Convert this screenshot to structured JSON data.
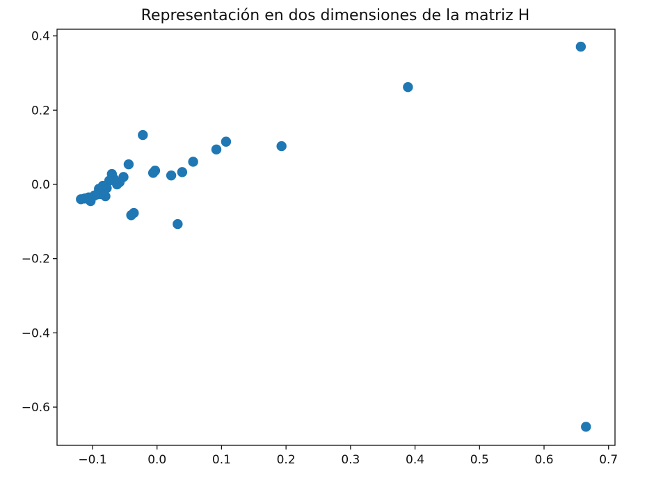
{
  "chart_data": {
    "type": "scatter",
    "title": "Representación en dos dimensiones de la matriz H",
    "xlabel": "",
    "ylabel": "",
    "xlim": [
      -0.155,
      0.71
    ],
    "ylim": [
      -0.703,
      0.418
    ],
    "grid": false,
    "marker_color": "#1f77b4",
    "x_ticks": [
      -0.1,
      0.0,
      0.1,
      0.2,
      0.3,
      0.4,
      0.5,
      0.6,
      0.7
    ],
    "x_tick_labels": [
      "−0.1",
      "0.0",
      "0.1",
      "0.2",
      "0.3",
      "0.4",
      "0.5",
      "0.6",
      "0.7"
    ],
    "y_ticks": [
      -0.6,
      -0.4,
      -0.2,
      0.0,
      0.2,
      0.4
    ],
    "y_tick_labels": [
      "−0.6",
      "−0.4",
      "−0.2",
      "0.0",
      "0.2",
      "0.4"
    ],
    "points": [
      {
        "x": 0.657,
        "y": 0.371
      },
      {
        "x": 0.665,
        "y": -0.653
      },
      {
        "x": 0.389,
        "y": 0.262
      },
      {
        "x": 0.193,
        "y": 0.103
      },
      {
        "x": 0.107,
        "y": 0.115
      },
      {
        "x": 0.092,
        "y": 0.094
      },
      {
        "x": 0.056,
        "y": 0.061
      },
      {
        "x": 0.039,
        "y": 0.033
      },
      {
        "x": 0.032,
        "y": -0.107
      },
      {
        "x": 0.022,
        "y": 0.024
      },
      {
        "x": -0.003,
        "y": 0.037
      },
      {
        "x": -0.006,
        "y": 0.031
      },
      {
        "x": -0.022,
        "y": 0.133
      },
      {
        "x": -0.036,
        "y": -0.077
      },
      {
        "x": -0.04,
        "y": -0.083
      },
      {
        "x": -0.044,
        "y": 0.054
      },
      {
        "x": -0.052,
        "y": 0.02
      },
      {
        "x": -0.058,
        "y": 0.006
      },
      {
        "x": -0.062,
        "y": 0.0
      },
      {
        "x": -0.067,
        "y": 0.015
      },
      {
        "x": -0.07,
        "y": 0.028
      },
      {
        "x": -0.074,
        "y": 0.01
      },
      {
        "x": -0.078,
        "y": -0.01
      },
      {
        "x": -0.08,
        "y": -0.032
      },
      {
        "x": -0.082,
        "y": -0.018
      },
      {
        "x": -0.084,
        "y": -0.004
      },
      {
        "x": -0.087,
        "y": -0.026
      },
      {
        "x": -0.09,
        "y": -0.012
      },
      {
        "x": -0.093,
        "y": -0.027
      },
      {
        "x": -0.097,
        "y": -0.03
      },
      {
        "x": -0.103,
        "y": -0.045
      },
      {
        "x": -0.106,
        "y": -0.035
      },
      {
        "x": -0.112,
        "y": -0.038
      },
      {
        "x": -0.118,
        "y": -0.04
      }
    ]
  }
}
